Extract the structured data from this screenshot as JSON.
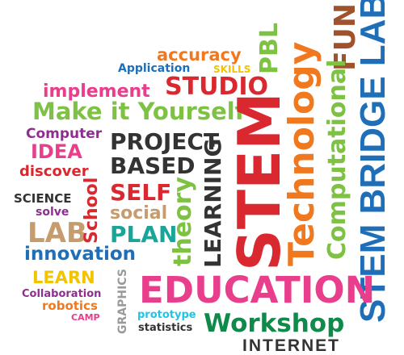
{
  "words": {
    "stem_bridge_labs": "STEM BRIDGE LABS",
    "fun": "FUN",
    "computational": "Computational",
    "technology": "Technology",
    "pbl": "PBL",
    "accuracy": "accuracy",
    "application": "Application",
    "skills": "SKILLS",
    "implement": "implement",
    "studio": "STUDIO",
    "make_it_yourself": "Make it Yourself",
    "computer": "Computer",
    "idea": "IDEA",
    "discover": "discover",
    "project": "PROJECT",
    "based": "BASED",
    "stem": "STEM",
    "learning": "LEARNING",
    "theory": "theory",
    "self": "SELF",
    "social": "social",
    "plan": "PLAN",
    "school": "School",
    "science": "SCIENCE",
    "solve": "solve",
    "lab": "LAB",
    "innovation": "innovation",
    "learn": "LEARN",
    "collaboration": "Collaboration",
    "robotics": "robotics",
    "camp": "CAMP",
    "graphics": "GRAPHICS",
    "education": "EDUCATION",
    "prototype": "prototype",
    "statistics": "statistics",
    "workshop": "Workshop",
    "internet": "INTERNET"
  },
  "colors": {
    "navy": "#1f6fb8",
    "orange": "#f0781e",
    "green": "#7dc242",
    "teal": "#1aa59a",
    "magenta": "#e83e8c",
    "purple": "#8e2e8f",
    "red": "#d9282f",
    "dark": "#333333",
    "tan": "#c69c6d",
    "gray": "#999999",
    "yellow": "#f2c300",
    "brown": "#a0522d",
    "cyan": "#1ec6e6",
    "darkgreen": "#0f8a4a",
    "blue": "#0071bc"
  }
}
